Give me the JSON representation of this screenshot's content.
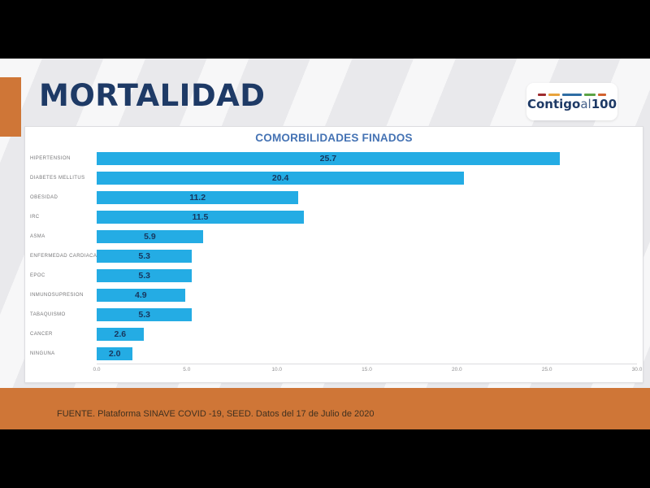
{
  "slide": {
    "title": "MORTALIDAD",
    "source_note": "FUENTE. Plataforma SINAVE COVID -19, SEED. Datos del 17 de Julio de 2020"
  },
  "logo": {
    "text_bold_1": "Contigo",
    "text_light": "al",
    "text_bold_2": "100",
    "dash_colors": [
      "#9e2b2e",
      "#e8a33d",
      "#2e6da4",
      "#5ba345",
      "#d2622f"
    ],
    "dash_widths": [
      10,
      14,
      24,
      14,
      10
    ]
  },
  "chart_data": {
    "type": "bar",
    "orientation": "horizontal",
    "title": "COMORBILIDADES FINADOS",
    "categories": [
      "HIPERTENSION",
      "DIABETES MELLITUS",
      "OBESIDAD",
      "IRC",
      "ASMA",
      "ENFERMEDAD CARDIACA",
      "EPOC",
      "INMUNOSUPRESION",
      "TABAQUISMO",
      "CANCER",
      "NINGUNA"
    ],
    "values": [
      25.7,
      20.4,
      11.2,
      11.5,
      5.9,
      5.3,
      5.3,
      4.9,
      5.3,
      2.6,
      2.0
    ],
    "value_labels": [
      "25.7",
      "20.4",
      "11.2",
      "11.5",
      "5.9",
      "5.3",
      "5.3",
      "4.9",
      "5.3",
      "2.6",
      "2.0"
    ],
    "xlim": [
      0,
      30
    ],
    "x_tick_labels": [
      "0.0",
      "5.0",
      "10.0",
      "15.0",
      "20.0",
      "25.0",
      "30.0"
    ],
    "xlabel": "",
    "ylabel": "",
    "legend": "none",
    "grid": "off",
    "bar_color": "#24ace4",
    "value_label_color": "#17365d",
    "title_color": "#4573b4"
  },
  "colors": {
    "letterbox_black": "#000000",
    "accent_orange": "#cf7637",
    "band_orange": "#cf7637",
    "title_navy": "#1e3a66"
  }
}
